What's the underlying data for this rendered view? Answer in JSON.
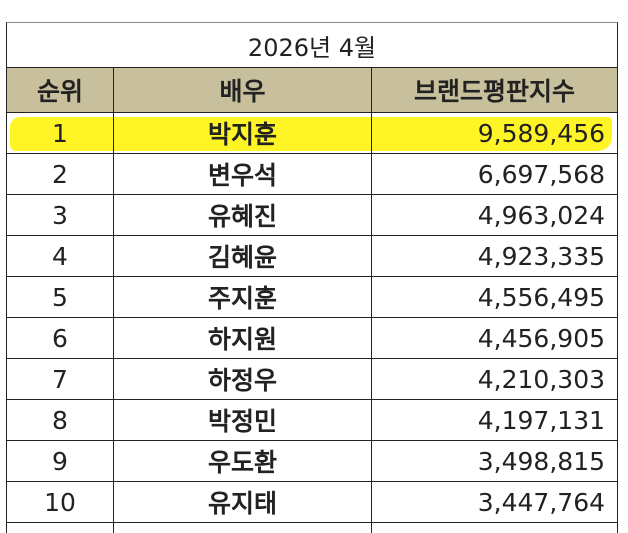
{
  "table": {
    "title": "2026년 4월",
    "header": [
      "순위",
      "배우",
      "브랜드평판지수"
    ],
    "rows": [
      [
        1,
        "박지훈",
        "9,589,456"
      ],
      [
        2,
        "변우석",
        "6,697,568"
      ],
      [
        3,
        "유혜진",
        "4,963,024"
      ],
      [
        4,
        "김혜윤",
        "4,923,335"
      ],
      [
        5,
        "주지훈",
        "4,556,495"
      ],
      [
        6,
        "하지원",
        "4,456,905"
      ],
      [
        7,
        "하정우",
        "4,210,303"
      ],
      [
        8,
        "박정민",
        "4,197,131"
      ],
      [
        9,
        "우도환",
        "3,498,815"
      ],
      [
        10,
        "유지태",
        "3,447,764"
      ]
    ]
  }
}
